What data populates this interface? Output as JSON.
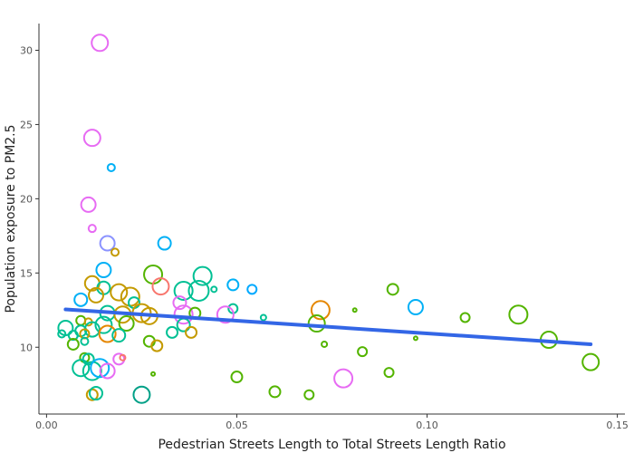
{
  "chart_data": {
    "type": "scatter",
    "title": "",
    "xlabel": "Pedestrian Streets Length to Total Streets Length Ratio",
    "ylabel": "Population exposure to PM2.5",
    "xlim": [
      -0.002,
      0.152
    ],
    "ylim": [
      5.5,
      31.8
    ],
    "xticks": [
      0.0,
      0.05,
      0.1,
      0.15
    ],
    "xtick_labels": [
      "0.00",
      "0.05",
      "0.10",
      "0.15"
    ],
    "yticks": [
      10,
      15,
      20,
      25,
      30
    ],
    "ytick_labels": [
      "10",
      "15",
      "20",
      "25",
      "30"
    ],
    "grid": false,
    "legend": "none",
    "trend_line": {
      "x": [
        0.005,
        0.143
      ],
      "y": [
        12.55,
        10.2
      ],
      "color": "#3366e6"
    },
    "points": [
      {
        "x": 0.014,
        "y": 30.5,
        "size": 9,
        "color": "#e76bf3"
      },
      {
        "x": 0.012,
        "y": 24.1,
        "size": 9,
        "color": "#e76bf3"
      },
      {
        "x": 0.017,
        "y": 22.1,
        "size": 4,
        "color": "#00b0f6"
      },
      {
        "x": 0.011,
        "y": 19.6,
        "size": 8,
        "color": "#e76bf3"
      },
      {
        "x": 0.012,
        "y": 18.0,
        "size": 4,
        "color": "#e76bf3"
      },
      {
        "x": 0.016,
        "y": 17.0,
        "size": 8,
        "color": "#8b93ff"
      },
      {
        "x": 0.031,
        "y": 17.0,
        "size": 7,
        "color": "#00b0f6"
      },
      {
        "x": 0.018,
        "y": 16.4,
        "size": 4,
        "color": "#c49a00"
      },
      {
        "x": 0.015,
        "y": 15.2,
        "size": 8,
        "color": "#00b0f6"
      },
      {
        "x": 0.028,
        "y": 14.9,
        "size": 10,
        "color": "#53b400"
      },
      {
        "x": 0.041,
        "y": 14.8,
        "size": 10,
        "color": "#00c094"
      },
      {
        "x": 0.012,
        "y": 14.3,
        "size": 8,
        "color": "#c49a00"
      },
      {
        "x": 0.03,
        "y": 14.1,
        "size": 9,
        "color": "#f8766d"
      },
      {
        "x": 0.049,
        "y": 14.2,
        "size": 6,
        "color": "#00b0f6"
      },
      {
        "x": 0.015,
        "y": 14.0,
        "size": 7,
        "color": "#00c094"
      },
      {
        "x": 0.036,
        "y": 13.8,
        "size": 10,
        "color": "#00c094"
      },
      {
        "x": 0.04,
        "y": 13.8,
        "size": 11,
        "color": "#00c094"
      },
      {
        "x": 0.044,
        "y": 13.9,
        "size": 3,
        "color": "#00c094"
      },
      {
        "x": 0.054,
        "y": 13.9,
        "size": 5,
        "color": "#00a9ff"
      },
      {
        "x": 0.091,
        "y": 13.9,
        "size": 6,
        "color": "#53b400"
      },
      {
        "x": 0.019,
        "y": 13.7,
        "size": 9,
        "color": "#c49a00"
      },
      {
        "x": 0.013,
        "y": 13.5,
        "size": 8,
        "color": "#c49a00"
      },
      {
        "x": 0.022,
        "y": 13.4,
        "size": 10,
        "color": "#c49a00"
      },
      {
        "x": 0.009,
        "y": 13.2,
        "size": 7,
        "color": "#00b0f6"
      },
      {
        "x": 0.023,
        "y": 13.0,
        "size": 6,
        "color": "#00c094"
      },
      {
        "x": 0.035,
        "y": 13.0,
        "size": 7,
        "color": "#e76bf3"
      },
      {
        "x": 0.097,
        "y": 12.7,
        "size": 8,
        "color": "#00b0f6"
      },
      {
        "x": 0.072,
        "y": 12.5,
        "size": 10,
        "color": "#e58700"
      },
      {
        "x": 0.049,
        "y": 12.6,
        "size": 5,
        "color": "#00c094"
      },
      {
        "x": 0.081,
        "y": 12.5,
        "size": 2,
        "color": "#53b400"
      },
      {
        "x": 0.016,
        "y": 12.3,
        "size": 8,
        "color": "#00c094"
      },
      {
        "x": 0.02,
        "y": 12.2,
        "size": 9,
        "color": "#c49a00"
      },
      {
        "x": 0.025,
        "y": 12.3,
        "size": 10,
        "color": "#c49a00"
      },
      {
        "x": 0.036,
        "y": 12.2,
        "size": 10,
        "color": "#e76bf3"
      },
      {
        "x": 0.039,
        "y": 12.3,
        "size": 6,
        "color": "#53b400"
      },
      {
        "x": 0.047,
        "y": 12.2,
        "size": 9,
        "color": "#e76bf3"
      },
      {
        "x": 0.124,
        "y": 12.2,
        "size": 10,
        "color": "#53b400"
      },
      {
        "x": 0.027,
        "y": 12.1,
        "size": 9,
        "color": "#c49a00"
      },
      {
        "x": 0.057,
        "y": 12.0,
        "size": 3,
        "color": "#00c094"
      },
      {
        "x": 0.11,
        "y": 12.0,
        "size": 5,
        "color": "#53b400"
      },
      {
        "x": 0.009,
        "y": 11.8,
        "size": 5,
        "color": "#53b400"
      },
      {
        "x": 0.011,
        "y": 11.7,
        "size": 4,
        "color": "#c49a00"
      },
      {
        "x": 0.015,
        "y": 11.5,
        "size": 9,
        "color": "#00c094"
      },
      {
        "x": 0.021,
        "y": 11.6,
        "size": 8,
        "color": "#53b400"
      },
      {
        "x": 0.005,
        "y": 11.3,
        "size": 8,
        "color": "#00c094"
      },
      {
        "x": 0.012,
        "y": 11.2,
        "size": 8,
        "color": "#00c094"
      },
      {
        "x": 0.071,
        "y": 11.6,
        "size": 9,
        "color": "#53b400"
      },
      {
        "x": 0.009,
        "y": 11.1,
        "size": 6,
        "color": "#00c094"
      },
      {
        "x": 0.036,
        "y": 11.5,
        "size": 7,
        "color": "#00c094"
      },
      {
        "x": 0.016,
        "y": 10.9,
        "size": 9,
        "color": "#e58700"
      },
      {
        "x": 0.019,
        "y": 10.8,
        "size": 7,
        "color": "#00c094"
      },
      {
        "x": 0.033,
        "y": 11.0,
        "size": 6,
        "color": "#00c094"
      },
      {
        "x": 0.038,
        "y": 11.0,
        "size": 6,
        "color": "#c49a00"
      },
      {
        "x": 0.004,
        "y": 10.9,
        "size": 4,
        "color": "#00c094"
      },
      {
        "x": 0.007,
        "y": 10.8,
        "size": 5,
        "color": "#00c094"
      },
      {
        "x": 0.01,
        "y": 10.9,
        "size": 5,
        "color": "#c49a00"
      },
      {
        "x": 0.132,
        "y": 10.5,
        "size": 9,
        "color": "#53b400"
      },
      {
        "x": 0.01,
        "y": 10.4,
        "size": 4,
        "color": "#00c094"
      },
      {
        "x": 0.007,
        "y": 10.2,
        "size": 6,
        "color": "#53b400"
      },
      {
        "x": 0.027,
        "y": 10.4,
        "size": 6,
        "color": "#53b400"
      },
      {
        "x": 0.029,
        "y": 10.1,
        "size": 6,
        "color": "#c49a00"
      },
      {
        "x": 0.073,
        "y": 10.2,
        "size": 3,
        "color": "#53b400"
      },
      {
        "x": 0.097,
        "y": 10.6,
        "size": 2,
        "color": "#53b400"
      },
      {
        "x": 0.083,
        "y": 9.7,
        "size": 5,
        "color": "#53b400"
      },
      {
        "x": 0.01,
        "y": 9.3,
        "size": 5,
        "color": "#53b400"
      },
      {
        "x": 0.011,
        "y": 9.2,
        "size": 6,
        "color": "#00c094"
      },
      {
        "x": 0.019,
        "y": 9.2,
        "size": 6,
        "color": "#e76bf3"
      },
      {
        "x": 0.02,
        "y": 9.3,
        "size": 3,
        "color": "#f8766d"
      },
      {
        "x": 0.143,
        "y": 9.0,
        "size": 9,
        "color": "#53b400"
      },
      {
        "x": 0.009,
        "y": 8.6,
        "size": 9,
        "color": "#00c094"
      },
      {
        "x": 0.012,
        "y": 8.4,
        "size": 10,
        "color": "#00c094"
      },
      {
        "x": 0.014,
        "y": 8.6,
        "size": 10,
        "color": "#00b0f6"
      },
      {
        "x": 0.016,
        "y": 8.4,
        "size": 8,
        "color": "#e76bf3"
      },
      {
        "x": 0.028,
        "y": 8.2,
        "size": 2,
        "color": "#53b400"
      },
      {
        "x": 0.09,
        "y": 8.3,
        "size": 5,
        "color": "#53b400"
      },
      {
        "x": 0.05,
        "y": 8.0,
        "size": 6,
        "color": "#53b400"
      },
      {
        "x": 0.078,
        "y": 7.9,
        "size": 10,
        "color": "#e76bf3"
      },
      {
        "x": 0.012,
        "y": 6.8,
        "size": 6,
        "color": "#c49a00"
      },
      {
        "x": 0.013,
        "y": 6.9,
        "size": 7,
        "color": "#00c094"
      },
      {
        "x": 0.025,
        "y": 6.8,
        "size": 9,
        "color": "#00a087"
      },
      {
        "x": 0.06,
        "y": 7.0,
        "size": 6,
        "color": "#53b400"
      },
      {
        "x": 0.069,
        "y": 6.8,
        "size": 5,
        "color": "#53b400"
      }
    ]
  }
}
